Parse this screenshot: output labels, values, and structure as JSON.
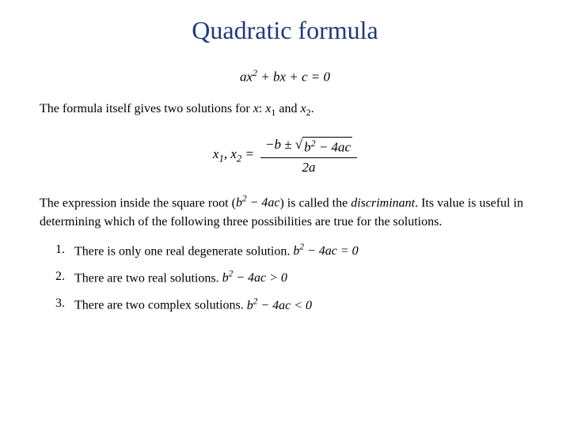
{
  "title": "Quadratic formula",
  "title_color": "#1f3a7a",
  "title_fontsize": 32,
  "body_fontsize": 16,
  "eq_fontsize": 17,
  "equation1_html": "ax<sup>2</sup> + bx + c = 0",
  "intro_line_prefix": "The formula itself gives two solutions for ",
  "intro_var": "x",
  "intro_mid": ": ",
  "intro_x1": "x",
  "intro_sub1": "1",
  "intro_and": " and ",
  "intro_x2": "x",
  "intro_sub2": "2",
  "intro_end": ".",
  "formula": {
    "left_x1": "x",
    "left_sub1": "1",
    "left_comma": ", ",
    "left_x2": "x",
    "left_sub2": "2",
    "left_eq": " = ",
    "num_prefix": "−b ± ",
    "sqrt_inner_html": "b<sup>2</sup> − 4ac",
    "den_html": "2a"
  },
  "para2_prefix": "The expression inside the square root (",
  "para2_expr_html": "b<sup>2</sup> − 4ac",
  "para2_mid": ") is called the ",
  "para2_discrim": "discriminant",
  "para2_end": ". Its value is useful in determining which of the following three possibilities are true for the solutions.",
  "list": [
    {
      "num": "1.",
      "text": "There is only one real degenerate solution. ",
      "cond_html": "b<sup>2</sup> − 4ac = 0"
    },
    {
      "num": "2.",
      "text": "There are two real solutions. ",
      "cond_html": "b<sup>2</sup> − 4ac > 0"
    },
    {
      "num": "3.",
      "text": "There are two complex solutions. ",
      "cond_html": "b<sup>2</sup> − 4ac < 0"
    }
  ]
}
